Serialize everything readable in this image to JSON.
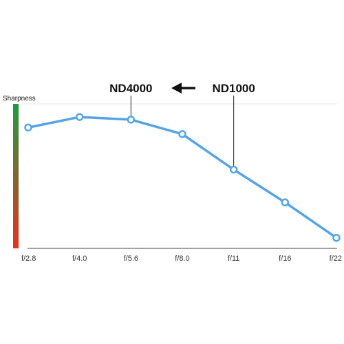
{
  "chart_data": {
    "type": "line",
    "ylabel": "Sharpness",
    "categories": [
      "f/2.8",
      "f/4.0",
      "f/5.6",
      "f/8.0",
      "f/11",
      "f/16",
      "f/22"
    ],
    "values": [
      0.92,
      1.0,
      0.98,
      0.87,
      0.6,
      0.35,
      0.08
    ],
    "ylim": [
      0,
      1.1
    ],
    "grid": false,
    "series_color": "#55a3e6",
    "gradient_colors": [
      "#1f9c3c",
      "#e4321d"
    ],
    "annotations": [
      {
        "text": "ND4000",
        "category": "f/5.6"
      },
      {
        "text": "ND1000",
        "category": "f/11"
      }
    ],
    "arrow": {
      "direction": "left",
      "color": "#111111"
    }
  }
}
